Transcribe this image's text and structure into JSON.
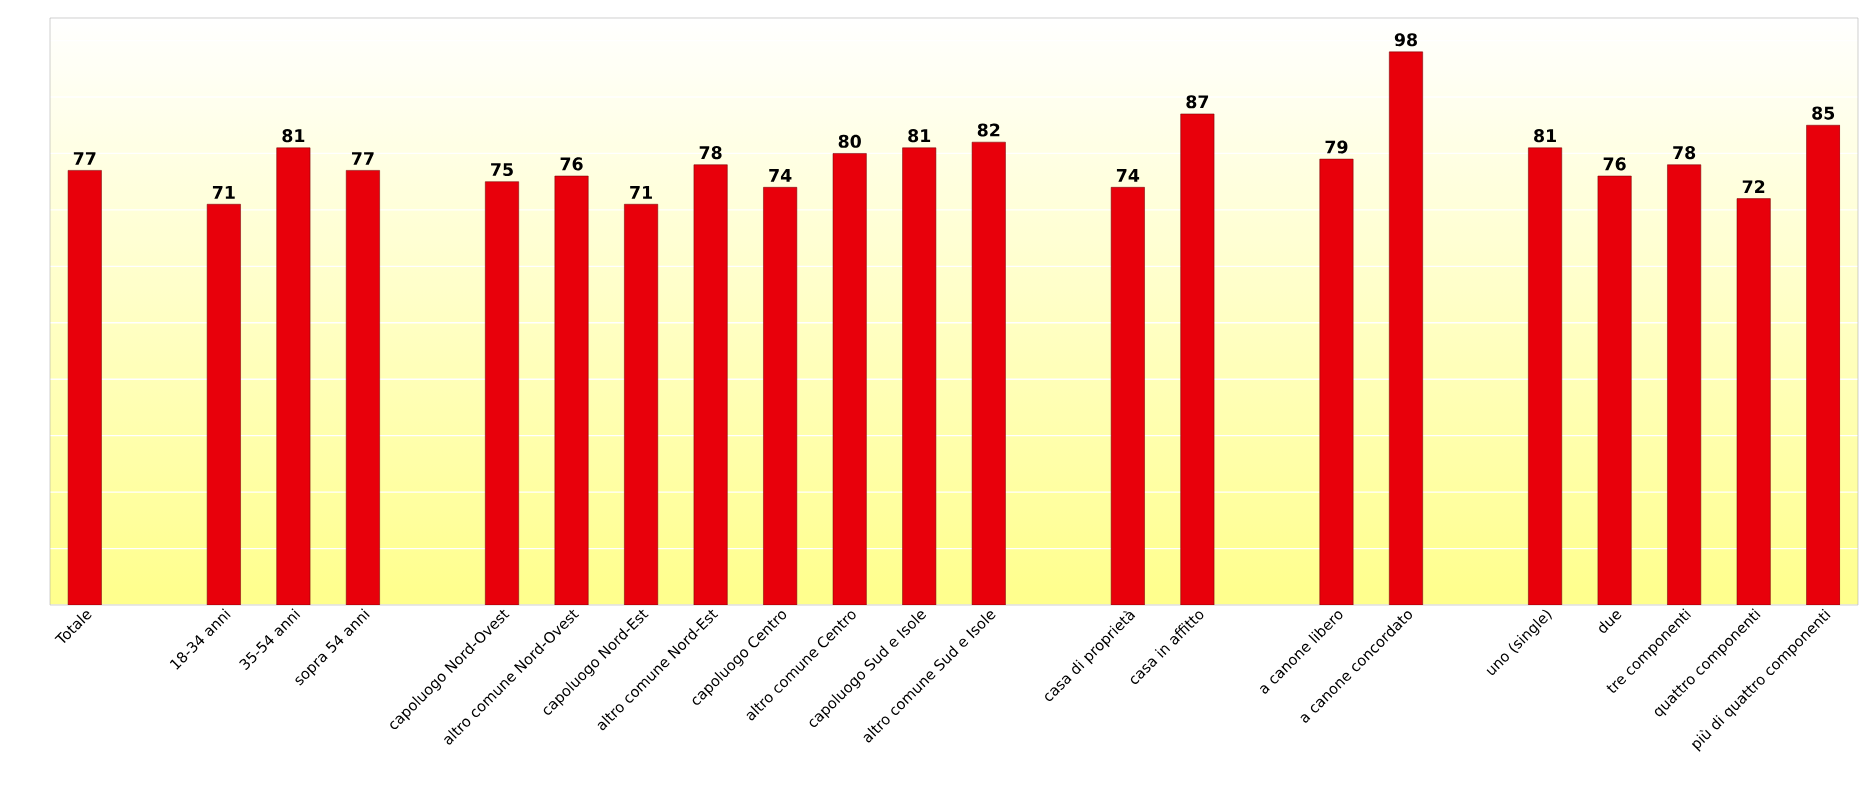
{
  "chart_data": {
    "type": "bar",
    "categories": [
      "Totale",
      null,
      "18-34 anni",
      "35-54 anni",
      "sopra 54 anni",
      null,
      "capoluogo Nord-Ovest",
      "altro comune Nord-Ovest",
      "capoluogo Nord-Est",
      "altro comune Nord-Est",
      "capoluogo Centro",
      "altro comune Centro",
      "capoluogo Sud e Isole",
      "altro comune Sud e Isole",
      null,
      "casa di proprietà",
      "casa in affitto",
      null,
      "a canone libero",
      "a canone concordato",
      null,
      "uno (single)",
      "due",
      "tre componenti",
      "quattro componenti",
      "più di quattro componenti"
    ],
    "values": [
      77,
      null,
      71,
      81,
      77,
      null,
      75,
      76,
      71,
      78,
      74,
      80,
      81,
      82,
      null,
      74,
      87,
      null,
      79,
      98,
      null,
      81,
      76,
      78,
      72,
      85
    ],
    "color": "#e8000b",
    "data_labels": true,
    "ylim": [
      0,
      104
    ],
    "yticks": [
      {
        "value": 0,
        "label": null
      },
      {
        "value": 10,
        "label": null
      },
      {
        "value": 20,
        "label": null
      },
      {
        "value": 30,
        "label": null
      },
      {
        "value": 40,
        "label": null
      },
      {
        "value": 50,
        "label": null
      },
      {
        "value": 60,
        "label": null
      },
      {
        "value": 70,
        "label": null
      },
      {
        "value": 80,
        "label": null
      },
      {
        "value": 90,
        "label": null
      },
      {
        "value": 100,
        "label": null
      }
    ],
    "grid": "y",
    "tick_labels": "x"
  }
}
